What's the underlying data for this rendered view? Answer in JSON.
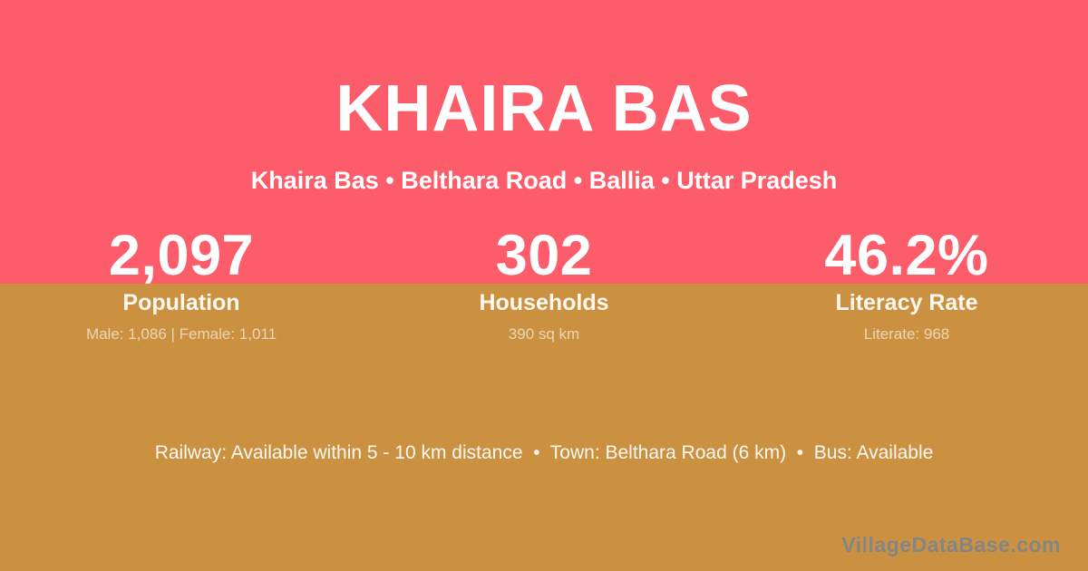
{
  "card": {
    "title": "KHAIRA BAS",
    "subtitle": "Khaira Bas • Belthara Road • Ballia • Uttar Pradesh",
    "stats": [
      {
        "value": "2,097",
        "label": "Population",
        "detail": "Male: 1,086 | Female: 1,011"
      },
      {
        "value": "302",
        "label": "Households",
        "detail": "390 sq km"
      },
      {
        "value": "46.2%",
        "label": "Literacy Rate",
        "detail": "Literate: 968"
      }
    ],
    "footer": {
      "services": "Railway: Available within 5 - 10 km distance  •  Town: Belthara Road (6 km)  •  Bus: Available",
      "watermark": "VillageDataBase.com"
    },
    "colors": {
      "top_background": "#fd5c6b",
      "bottom_background": "#cc9140",
      "text_primary": "#ffffff",
      "text_muted": "rgba(255,255,255,0.62)",
      "watermark_gray": "#858585"
    }
  }
}
